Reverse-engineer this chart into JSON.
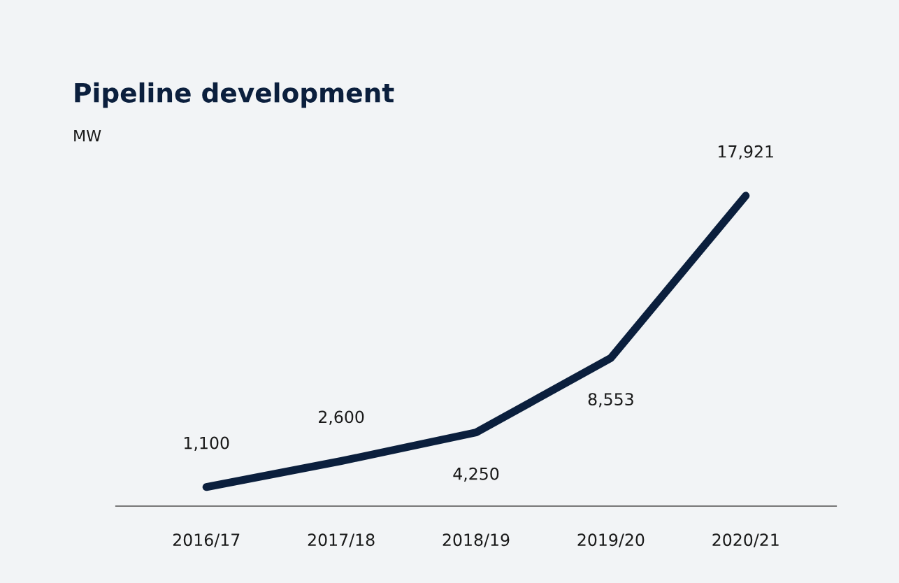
{
  "chart_data": {
    "type": "line",
    "title": "Pipeline development",
    "ylabel": "MW",
    "categories": [
      "2016/17",
      "2017/18",
      "2018/19",
      "2019/20",
      "2020/21"
    ],
    "series": [
      {
        "color": "#0b1f3d",
        "values": [
          1100,
          2600,
          4250,
          8553,
          17921
        ],
        "value_labels": [
          "1,100",
          "2,600",
          "4,250",
          "8,553",
          "17,921"
        ]
      }
    ],
    "tick_labels": "x",
    "grid": false,
    "marker": "none",
    "line_style": "solid"
  }
}
